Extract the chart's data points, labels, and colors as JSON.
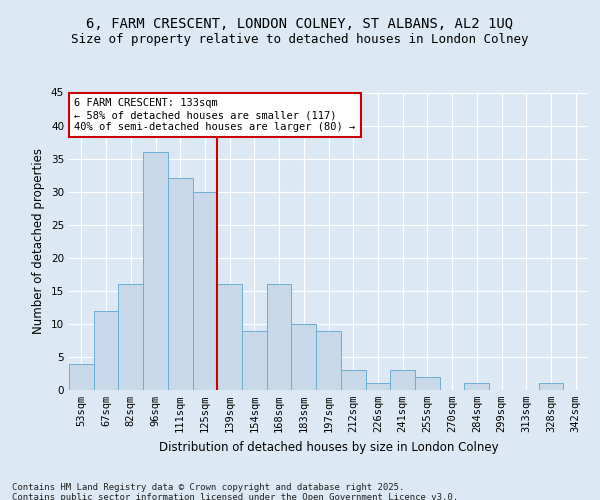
{
  "title_line1": "6, FARM CRESCENT, LONDON COLNEY, ST ALBANS, AL2 1UQ",
  "title_line2": "Size of property relative to detached houses in London Colney",
  "xlabel": "Distribution of detached houses by size in London Colney",
  "ylabel": "Number of detached properties",
  "categories": [
    "53sqm",
    "67sqm",
    "82sqm",
    "96sqm",
    "111sqm",
    "125sqm",
    "139sqm",
    "154sqm",
    "168sqm",
    "183sqm",
    "197sqm",
    "212sqm",
    "226sqm",
    "241sqm",
    "255sqm",
    "270sqm",
    "284sqm",
    "299sqm",
    "313sqm",
    "328sqm",
    "342sqm"
  ],
  "values": [
    4,
    12,
    16,
    36,
    32,
    30,
    16,
    9,
    16,
    10,
    9,
    3,
    1,
    3,
    2,
    0,
    1,
    0,
    0,
    1,
    0
  ],
  "bar_color": "#c8daea",
  "bar_edge_color": "#6baed6",
  "vline_color": "#cc0000",
  "annotation_text": "6 FARM CRESCENT: 133sqm\n← 58% of detached houses are smaller (117)\n40% of semi-detached houses are larger (80) →",
  "annotation_box_color": "#ffffff",
  "annotation_box_edge": "#cc0000",
  "ylim": [
    0,
    45
  ],
  "yticks": [
    0,
    5,
    10,
    15,
    20,
    25,
    30,
    35,
    40,
    45
  ],
  "plot_bg_color": "#dce9f5",
  "fig_bg_color": "#dce9f5",
  "grid_color": "#ffffff",
  "footer_text": "Contains HM Land Registry data © Crown copyright and database right 2025.\nContains public sector information licensed under the Open Government Licence v3.0.",
  "title_fontsize": 10,
  "subtitle_fontsize": 9,
  "axis_label_fontsize": 8.5,
  "tick_fontsize": 7.5,
  "annotation_fontsize": 7.5,
  "footer_fontsize": 6.5
}
